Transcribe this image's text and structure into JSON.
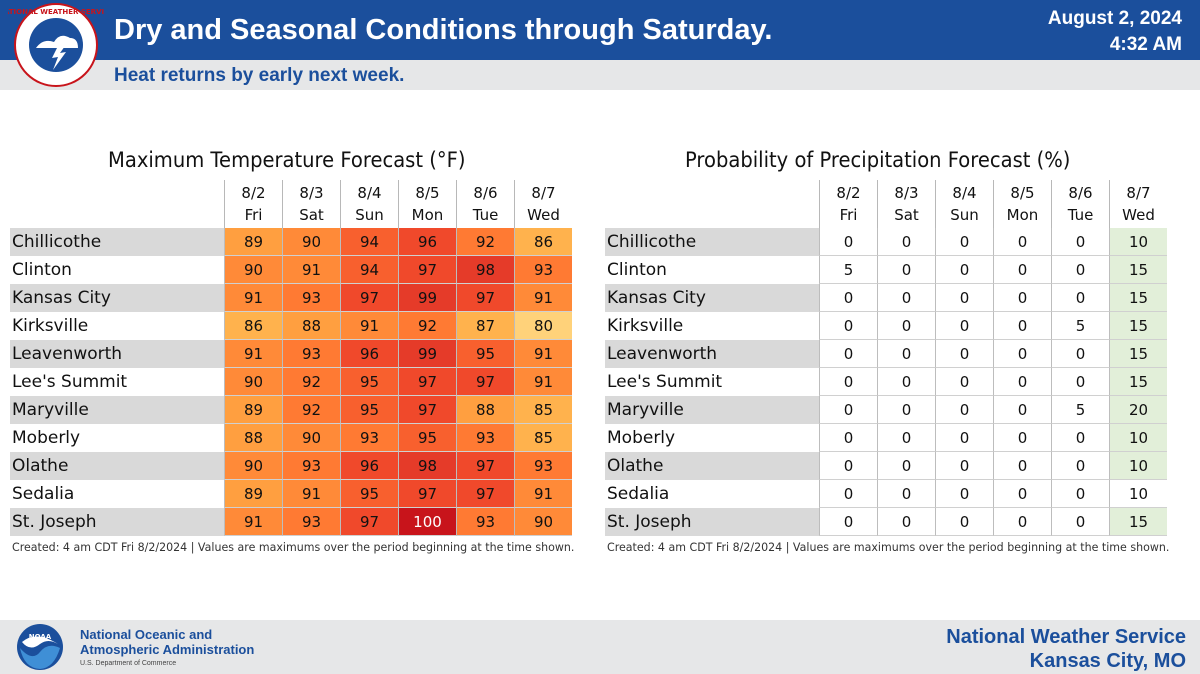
{
  "header": {
    "title": "Dry and Seasonal Conditions through Saturday.",
    "subtitle": "Heat returns by early next week.",
    "date": "August 2, 2024",
    "time": "4:32 AM",
    "logo_text": "NATIONAL WEATHER SERVICE"
  },
  "colors": {
    "header_blue": "#1b4f9c",
    "temp_80": "#ffd27a",
    "temp_85_87": "#ffb24d",
    "temp_88_89": "#ff9f40",
    "temp_90_91": "#ff8a38",
    "temp_92_93": "#ff7a33",
    "temp_94_95": "#f8602e",
    "temp_96_97": "#f0492b",
    "temp_98_99": "#e53b29",
    "temp_100": "#c8141b",
    "pop_highlight": "#e2efd9"
  },
  "chart_data": [
    {
      "type": "table",
      "title": "Maximum Temperature Forecast (°F)",
      "columns": [
        {
          "date": "8/2",
          "day": "Fri"
        },
        {
          "date": "8/3",
          "day": "Sat"
        },
        {
          "date": "8/4",
          "day": "Sun"
        },
        {
          "date": "8/5",
          "day": "Mon"
        },
        {
          "date": "8/6",
          "day": "Tue"
        },
        {
          "date": "8/7",
          "day": "Wed"
        }
      ],
      "rows": [
        {
          "city": "Chillicothe",
          "values": [
            89,
            90,
            94,
            96,
            92,
            86
          ]
        },
        {
          "city": "Clinton",
          "values": [
            90,
            91,
            94,
            97,
            98,
            93
          ]
        },
        {
          "city": "Kansas City",
          "values": [
            91,
            93,
            97,
            99,
            97,
            91
          ]
        },
        {
          "city": "Kirksville",
          "values": [
            86,
            88,
            91,
            92,
            87,
            80
          ]
        },
        {
          "city": "Leavenworth",
          "values": [
            91,
            93,
            96,
            99,
            95,
            91
          ]
        },
        {
          "city": "Lee's Summit",
          "values": [
            90,
            92,
            95,
            97,
            97,
            91
          ]
        },
        {
          "city": "Maryville",
          "values": [
            89,
            92,
            95,
            97,
            88,
            85
          ]
        },
        {
          "city": "Moberly",
          "values": [
            88,
            90,
            93,
            95,
            93,
            85
          ]
        },
        {
          "city": "Olathe",
          "values": [
            90,
            93,
            96,
            98,
            97,
            93
          ]
        },
        {
          "city": "Sedalia",
          "values": [
            89,
            91,
            95,
            97,
            97,
            91
          ]
        },
        {
          "city": "St. Joseph",
          "values": [
            91,
            93,
            97,
            100,
            93,
            90
          ]
        }
      ],
      "footnote": "Created: 4 am CDT Fri 8/2/2024  |  Values are maximums over the period beginning at the time shown."
    },
    {
      "type": "table",
      "title": "Probability of Precipitation Forecast (%)",
      "columns": [
        {
          "date": "8/2",
          "day": "Fri"
        },
        {
          "date": "8/3",
          "day": "Sat"
        },
        {
          "date": "8/4",
          "day": "Sun"
        },
        {
          "date": "8/5",
          "day": "Mon"
        },
        {
          "date": "8/6",
          "day": "Tue"
        },
        {
          "date": "8/7",
          "day": "Wed"
        }
      ],
      "rows": [
        {
          "city": "Chillicothe",
          "values": [
            0,
            0,
            0,
            0,
            0,
            10
          ]
        },
        {
          "city": "Clinton",
          "values": [
            5,
            0,
            0,
            0,
            0,
            15
          ]
        },
        {
          "city": "Kansas City",
          "values": [
            0,
            0,
            0,
            0,
            0,
            15
          ]
        },
        {
          "city": "Kirksville",
          "values": [
            0,
            0,
            0,
            0,
            5,
            15
          ]
        },
        {
          "city": "Leavenworth",
          "values": [
            0,
            0,
            0,
            0,
            0,
            15
          ]
        },
        {
          "city": "Lee's Summit",
          "values": [
            0,
            0,
            0,
            0,
            0,
            15
          ]
        },
        {
          "city": "Maryville",
          "values": [
            0,
            0,
            0,
            0,
            5,
            20
          ]
        },
        {
          "city": "Moberly",
          "values": [
            0,
            0,
            0,
            0,
            0,
            10
          ]
        },
        {
          "city": "Olathe",
          "values": [
            0,
            0,
            0,
            0,
            0,
            10
          ]
        },
        {
          "city": "Sedalia",
          "values": [
            0,
            0,
            0,
            0,
            0,
            10
          ]
        },
        {
          "city": "St. Joseph",
          "values": [
            0,
            0,
            0,
            0,
            0,
            15
          ]
        }
      ],
      "footnote": "Created: 4 am CDT Fri 8/2/2024  |  Values are maximums over the period beginning at the time shown."
    }
  ],
  "footer": {
    "agency_line1": "National Oceanic and",
    "agency_line2": "Atmospheric Administration",
    "agency_line3": "U.S. Department of Commerce",
    "noaa_logo_text": "NOAA",
    "office_line1": "National Weather Service",
    "office_line2": "Kansas City, MO"
  }
}
